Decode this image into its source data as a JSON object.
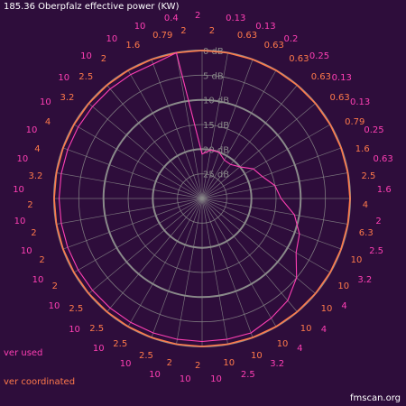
{
  "title": "185.36 Oberpfalz effective power (KW)",
  "watermark": "fmscan.org",
  "legend": {
    "used_label": "ver used",
    "coordinated_label": "ver coordinated",
    "used_color": "#ff3fb4",
    "coordinated_color": "#ff7a4a"
  },
  "colors": {
    "background": "#2e0d3b",
    "grid": "#8a8a8a",
    "text": "#ffffff",
    "ring_labels": "#8a8a8a"
  },
  "chart_data": {
    "type": "polar",
    "title": "185.36 Oberpfalz effective power (KW)",
    "units": "kW",
    "r_ticks": [
      "0 dB",
      "5 dB",
      "10 dB",
      "15 dB",
      "20 dB",
      "25 dB"
    ],
    "r_tick_values_db": [
      0,
      5,
      10,
      15,
      20,
      25
    ],
    "r_max_db": 30,
    "spoke_step_deg": 10,
    "outer_labels_kw": [
      "2",
      "2",
      "0.13",
      "0.63",
      "0.13",
      "0.63",
      "0.2",
      "0.63",
      "0.25",
      "0.63",
      "0.13",
      "0.63",
      "0.13",
      "0.79",
      "0.25",
      "1.6",
      "0.63",
      "2.5",
      "1.6",
      "4",
      "2",
      "6.3",
      "2.5",
      "10",
      "3.2",
      "10",
      "4",
      "10",
      "4",
      "10",
      "4",
      "10",
      "3.2",
      "10",
      "2.5",
      "10",
      "10",
      "2",
      "10",
      "2",
      "10",
      "2.5",
      "10",
      "2.5",
      "10",
      "2.5",
      "10",
      "2.5",
      "10",
      "2",
      "10",
      "2",
      "10",
      "2",
      "10",
      "2",
      "10",
      "3.2",
      "10",
      "4",
      "10",
      "4",
      "10",
      "3.2",
      "10",
      "2.5",
      "10",
      "2",
      "10",
      "1.6",
      "10",
      "0.79",
      "0.4",
      "2"
    ],
    "label_colors": [
      "#ff3fb4",
      "#ff7a4a"
    ],
    "series": [
      {
        "name": "ver used",
        "angles_deg": [
          0,
          10,
          20,
          30,
          40,
          50,
          60,
          70,
          80,
          90,
          100,
          110,
          120,
          130,
          140,
          150,
          160,
          170,
          180,
          190,
          200,
          210,
          220,
          230,
          240,
          250,
          260,
          270,
          280,
          290,
          300,
          310,
          320,
          330,
          340,
          350
        ],
        "values_db": [
          21,
          20,
          20,
          21,
          21,
          20,
          18,
          17,
          15,
          14,
          11,
          9,
          8,
          5,
          3,
          2,
          1,
          1,
          1,
          1,
          1,
          1,
          1,
          1,
          1,
          1,
          1,
          1,
          1,
          1,
          1,
          1,
          1,
          1,
          1,
          0
        ],
        "values_kw": [
          0.79,
          0.4,
          0.2,
          0.25,
          0.13,
          0.25,
          0.63,
          0.79,
          1.6,
          2.5,
          4,
          6.3,
          10,
          10,
          10,
          10,
          10,
          10,
          10,
          10,
          10,
          10,
          10,
          10,
          10,
          10,
          10,
          10,
          10,
          10,
          10,
          10,
          10,
          10,
          10,
          10
        ]
      },
      {
        "name": "ver coordinated",
        "angles_deg": [
          0,
          10,
          20,
          30,
          40,
          50,
          60,
          70,
          80,
          90,
          100,
          110,
          120,
          130,
          140,
          150,
          160,
          170,
          180,
          190,
          200,
          210,
          220,
          230,
          240,
          250,
          260,
          270,
          280,
          290,
          300,
          310,
          320,
          330,
          340,
          350
        ],
        "values_db": [
          0,
          0,
          0,
          0,
          0,
          0,
          0,
          0,
          0,
          0,
          0,
          0,
          0,
          0,
          0,
          0,
          0,
          0,
          0,
          0,
          0,
          0,
          0,
          0,
          0,
          0,
          0,
          0,
          0,
          0,
          0,
          0,
          0,
          0,
          0,
          0
        ],
        "values_kw": [
          10,
          10,
          10,
          10,
          10,
          10,
          10,
          10,
          10,
          10,
          10,
          10,
          10,
          10,
          10,
          10,
          10,
          10,
          10,
          10,
          10,
          10,
          10,
          10,
          10,
          10,
          10,
          10,
          10,
          10,
          10,
          10,
          10,
          10,
          10,
          10
        ]
      }
    ]
  }
}
